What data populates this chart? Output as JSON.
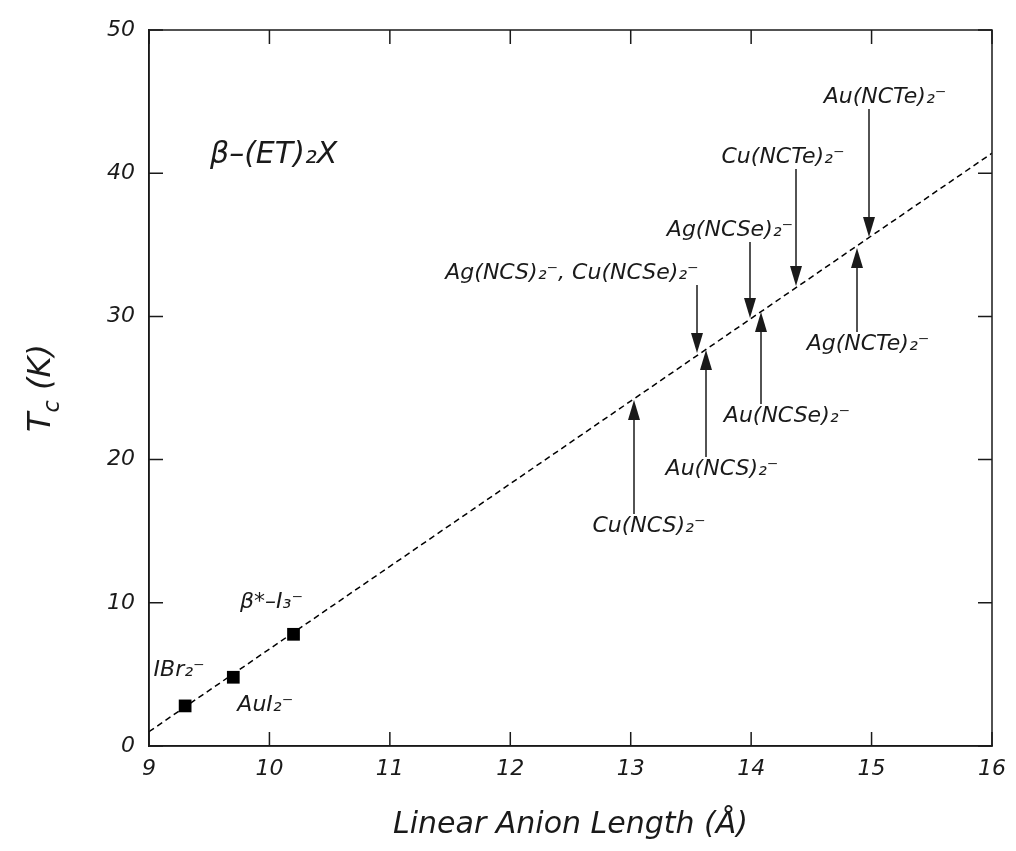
{
  "chart_data": {
    "type": "scatter",
    "xlabel": "Linear Anion Length (Å)",
    "ylabel": "T$_{c}$ (K)",
    "xlim": [
      9,
      16
    ],
    "ylim": [
      0,
      50
    ],
    "xticks": [
      9,
      10,
      11,
      12,
      13,
      14,
      15,
      16
    ],
    "yticks": [
      0,
      10,
      20,
      30,
      40,
      50
    ],
    "series": [
      {
        "type": "scatter",
        "color": "#000000",
        "marker": "square",
        "x": [
          9.3,
          9.7,
          10.2
        ],
        "values": [
          2.8,
          4.8,
          7.8
        ]
      },
      {
        "type": "line",
        "color": "#000000",
        "marker": "none",
        "line_style": "dashed",
        "x": [
          9,
          16
        ],
        "values": [
          1.0,
          41.4
        ]
      }
    ],
    "annotations": [
      "β–(ET)₂X",
      {
        "text": "IBr₂⁻",
        "x": 9.3,
        "y": 2.8
      },
      {
        "text": "AuI₂⁻",
        "x": 9.7,
        "y": 4.8
      },
      {
        "text": "β*–I₃⁻",
        "x": 10.2,
        "y": 7.8
      },
      "Ag(NCS)₂⁻, Cu(NCSe)₂⁻",
      "Cu(NCS)₂⁻",
      "Au(NCS)₂⁻",
      "Ag(NCSe)₂⁻",
      "Au(NCSe)₂⁻",
      "Cu(NCTe)₂⁻",
      "Au(NCTe)₂⁻",
      "Ag(NCTe)₂⁻"
    ]
  }
}
